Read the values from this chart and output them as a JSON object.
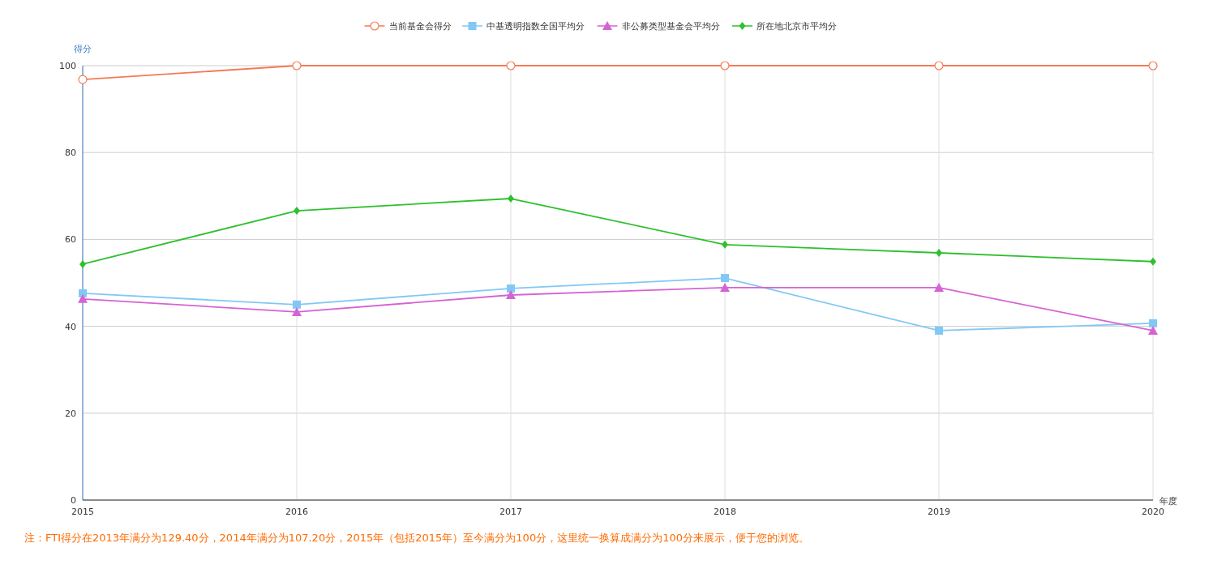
{
  "chart_data": {
    "type": "line",
    "categories": [
      "2015",
      "2016",
      "2017",
      "2018",
      "2019",
      "2020"
    ],
    "xlabel": "年度",
    "ylabel": "得分",
    "ylim": [
      0,
      100
    ],
    "yticks": [
      0,
      20,
      40,
      60,
      80,
      100
    ],
    "grid": true,
    "legend": "top",
    "series": [
      {
        "name": "当前基金会得分",
        "color": "#f47a55",
        "marker": "circle",
        "values": [
          96.8,
          100,
          100,
          100,
          100,
          100
        ]
      },
      {
        "name": "中基透明指数全国平均分",
        "color": "#82c8f5",
        "marker": "square",
        "values": [
          47.6,
          45.0,
          48.7,
          51.1,
          39.0,
          40.7
        ]
      },
      {
        "name": "非公募类型基金会平均分",
        "color": "#d563d3",
        "marker": "triangle",
        "values": [
          46.3,
          43.3,
          47.2,
          48.9,
          48.9,
          39.0
        ]
      },
      {
        "name": "所在地北京市平均分",
        "color": "#2ec02e",
        "marker": "diamond",
        "values": [
          54.3,
          66.6,
          69.4,
          58.8,
          56.9,
          54.9
        ]
      }
    ],
    "annotations": [
      "注：FTI得分在2013年满分为129.40分，2014年满分为107.20分，2015年（包括2015年）至今满分为100分，这里统一换算成满分为100分来展示，便于您的浏览。"
    ]
  }
}
